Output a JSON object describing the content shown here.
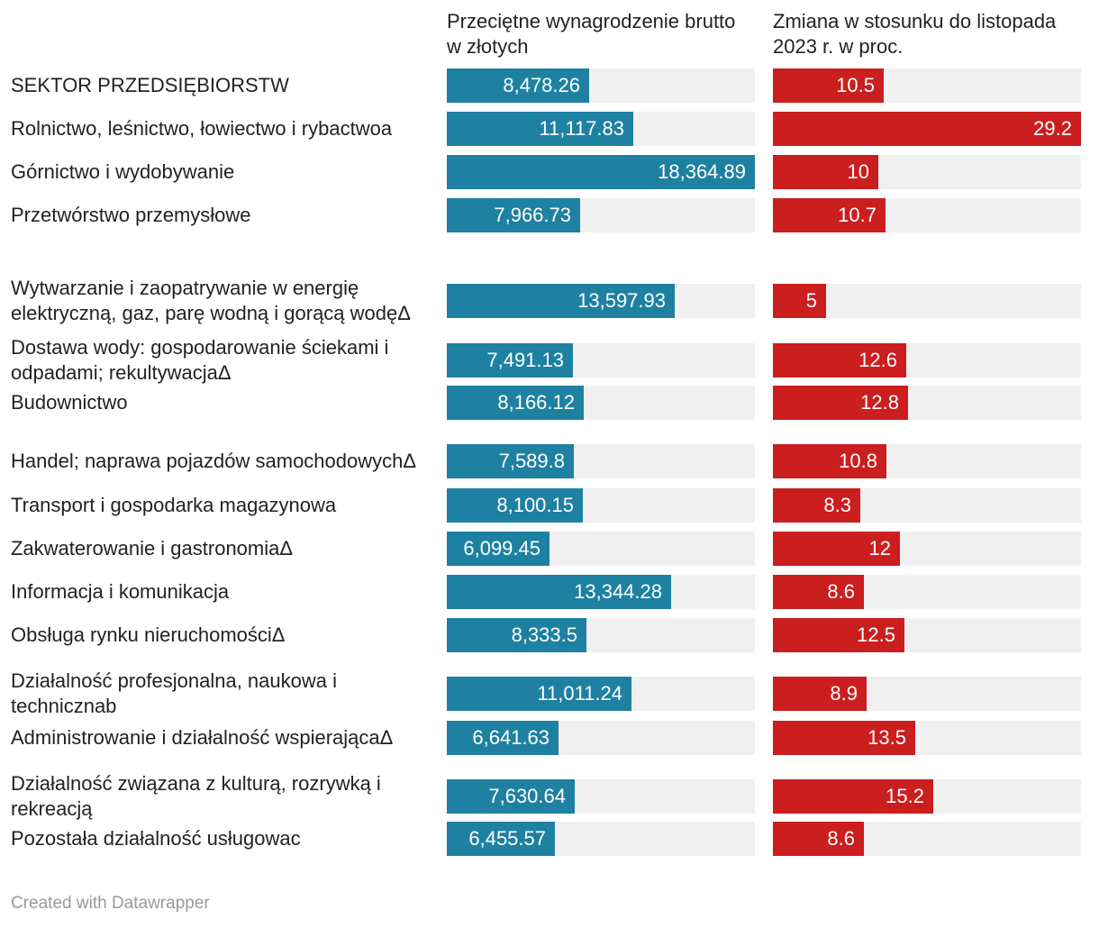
{
  "chart_data": {
    "type": "bar",
    "orientation": "horizontal",
    "series": [
      {
        "name": "Przeciętne wynagrodzenie brutto w złotych",
        "values": [
          8478.26,
          11117.83,
          18364.89,
          7966.73,
          13597.93,
          7491.13,
          8166.12,
          7589.8,
          8100.15,
          6099.45,
          13344.28,
          8333.5,
          11011.24,
          6641.63,
          7630.64,
          6455.57
        ],
        "labels": [
          "8,478.26",
          "11,117.83",
          "18,364.89",
          "7,966.73",
          "13,597.93",
          "7,491.13",
          "8,166.12",
          "7,589.8",
          "8,100.15",
          "6,099.45",
          "13,344.28",
          "8,333.5",
          "11,011.24",
          "6,641.63",
          "7,630.64",
          "6,455.57"
        ],
        "xlim": [
          0,
          18364.89
        ]
      },
      {
        "name": "Zmiana w stosunku do listopada 2023 r. w proc.",
        "values": [
          10.5,
          29.2,
          10,
          10.7,
          5,
          12.6,
          12.8,
          10.8,
          8.3,
          12,
          8.6,
          12.5,
          8.9,
          13.5,
          15.2,
          8.6
        ],
        "labels": [
          "10.5",
          "29.2",
          "10",
          "10.7",
          "5",
          "12.6",
          "12.8",
          "10.8",
          "8.3",
          "12",
          "8.6",
          "12.5",
          "8.9",
          "13.5",
          "15.2",
          "8.6"
        ],
        "xlim": [
          0,
          29.2
        ]
      }
    ],
    "categories": [
      "SEKTOR PRZEDSIĘBIORSTW",
      "Rolnictwo, leśnictwo, łowiectwo i rybactwoa",
      "Górnictwo i wydobywanie",
      "Przetwórstwo przemysłowe",
      "Wytwarzanie i zaopatrywanie w energię elektryczną, gaz, parę wodną i gorącą wodęΔ",
      "Dostawa wody: gospodarowanie ściekami i odpadami; rekultywacjaΔ",
      "Budownictwo",
      "Handel; naprawa pojazdów samochodowychΔ",
      "Transport i gospodarka magazynowa",
      "Zakwaterowanie i gastronomiaΔ",
      "Informacja i komunikacja",
      "Obsługa rynku nieruchomościΔ",
      "Działalność profesjonalna, naukowa i technicznab",
      "Administrowanie i działalność wspierającaΔ",
      "Działalność związana z kulturą, rozrywką i rekreacją",
      "Pozostała działalność usługowac"
    ],
    "footer": "Created with Datawrapper"
  },
  "colors": {
    "wage_bar": "#1e81a1",
    "change_bar": "#cb1e1e",
    "track": "#f0f0f0"
  }
}
